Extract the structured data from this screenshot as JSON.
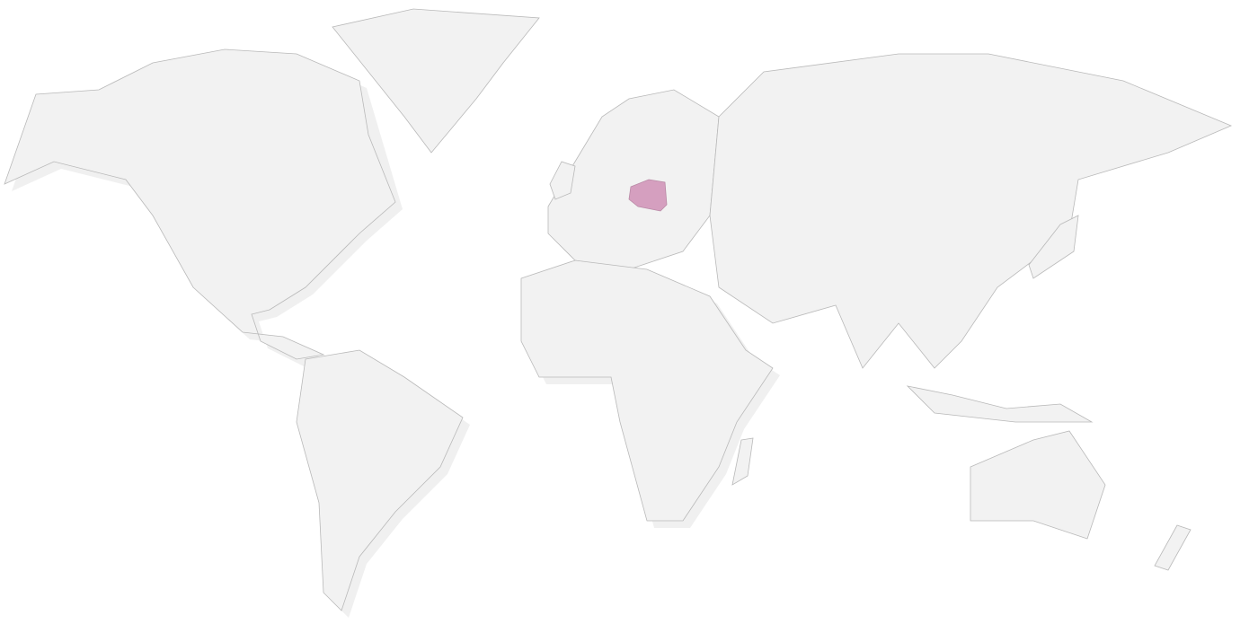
{
  "map": {
    "type": "world-choropleth",
    "highlighted_regions": [
      {
        "name": "Poland",
        "color": "#d59fbf"
      }
    ],
    "colors": {
      "land": "#f2f2f2",
      "border": "#b9b9b9",
      "background": "#ffffff",
      "highlight": "#d59fbf"
    }
  }
}
